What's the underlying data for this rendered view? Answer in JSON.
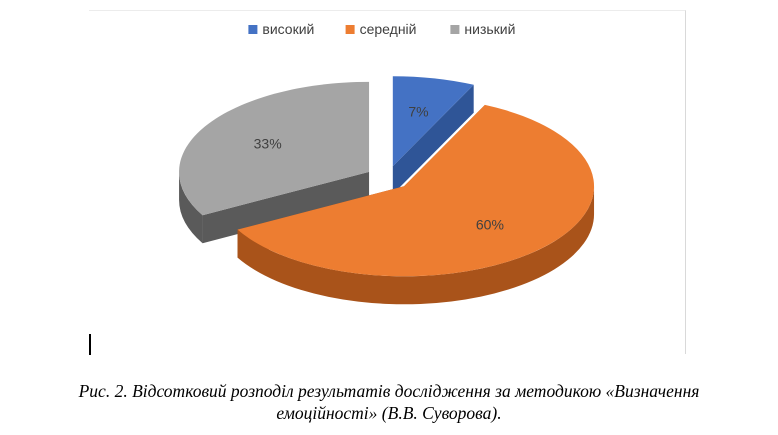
{
  "chart_data": {
    "type": "pie",
    "style": "3d-exploded",
    "title": "",
    "legend": {
      "placement": "top",
      "entries": [
        "високий",
        "середній",
        "низький"
      ]
    },
    "slices": [
      {
        "name": "високий",
        "value": 7,
        "label": "7%",
        "color": "#4472C4",
        "side_color": "#2F5597"
      },
      {
        "name": "середній",
        "value": 60,
        "label": "60%",
        "color": "#ED7D31",
        "side_color": "#A9531A"
      },
      {
        "name": "низький",
        "value": 33,
        "label": "33%",
        "color": "#A5A5A5",
        "side_color": "#5A5A5A"
      }
    ]
  },
  "caption": {
    "line1": "Рис. 2.  Відсотковий розподіл результатів дослідження за методикою «Визначення",
    "line2": "емоційності» (В.В. Суворова)."
  }
}
